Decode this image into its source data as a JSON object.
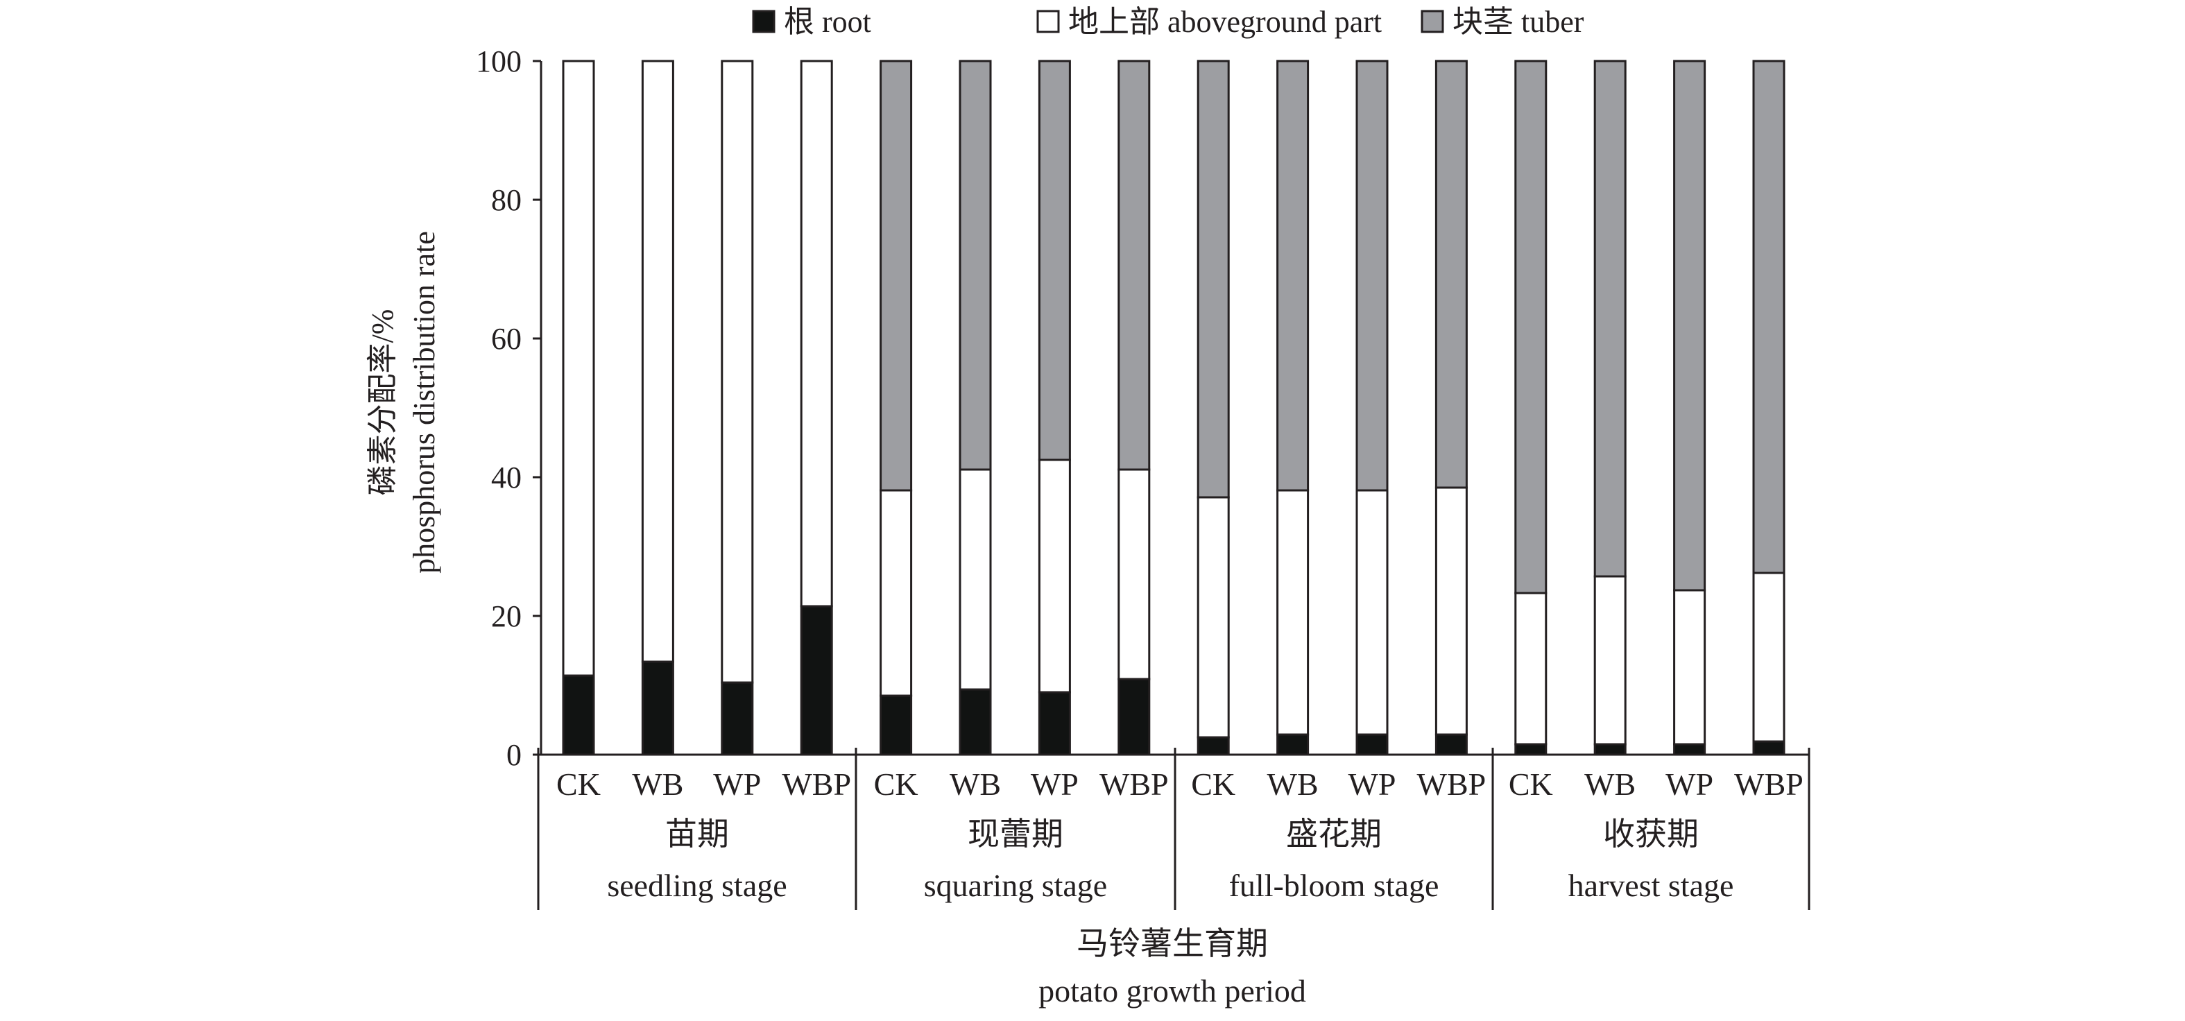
{
  "chart_data": {
    "type": "bar",
    "stacked": true,
    "title": "",
    "ylabel_cn": "磷素分配率/%",
    "ylabel_en": "phosphorus distribution rate",
    "xlabel_cn": "马铃薯生育期",
    "xlabel_en": "potato growth period",
    "ylim": [
      0,
      100
    ],
    "yticks": [
      "0",
      "20",
      "40",
      "60",
      "80",
      "100"
    ],
    "legend_position": "top-center",
    "legend": [
      {
        "label": "根 root",
        "color": "#111312"
      },
      {
        "label": "地上部 aboveground part",
        "color": "#ffffff"
      },
      {
        "label": "块茎 tuber",
        "color": "#9d9ea2"
      }
    ],
    "groups": [
      {
        "cn": "苗期",
        "en": "seedling stage"
      },
      {
        "cn": "现蕾期",
        "en": "squaring stage"
      },
      {
        "cn": "盛花期",
        "en": "full-bloom stage"
      },
      {
        "cn": "收获期",
        "en": "harvest stage"
      }
    ],
    "categories": [
      "CK",
      "WB",
      "WP",
      "WBP",
      "CK",
      "WB",
      "WP",
      "WBP",
      "CK",
      "WB",
      "WP",
      "WBP",
      "CK",
      "WB",
      "WP",
      "WBP"
    ],
    "series": [
      {
        "name": "根 root",
        "values": [
          11.4,
          13.4,
          10.4,
          21.4,
          8.5,
          9.4,
          9.0,
          10.9,
          2.5,
          2.9,
          2.9,
          2.9,
          1.5,
          1.5,
          1.5,
          1.9
        ]
      },
      {
        "name": "地上部 aboveground part",
        "values": [
          88.6,
          86.6,
          89.6,
          78.6,
          29.6,
          31.7,
          33.5,
          30.2,
          34.6,
          35.2,
          35.2,
          35.6,
          21.8,
          24.2,
          22.2,
          24.3
        ]
      },
      {
        "name": "块茎 tuber",
        "values": [
          0,
          0,
          0,
          0,
          61.9,
          58.9,
          57.5,
          58.9,
          62.9,
          61.9,
          61.9,
          61.5,
          76.7,
          74.3,
          76.3,
          73.8
        ]
      }
    ]
  }
}
